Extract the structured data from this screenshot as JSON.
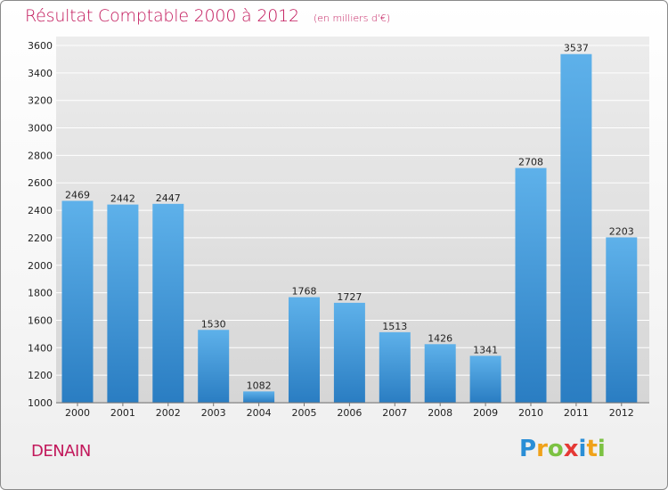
{
  "header": {
    "title": "Résultat Comptable 2000 à 2012",
    "subtitle": "(en milliers d'€)"
  },
  "footer": {
    "city": "DENAIN",
    "logo_text": "Proxiti"
  },
  "colors": {
    "title": "#c2185b",
    "bar_top": "#5aaee8",
    "bar_bottom": "#2a7fc4",
    "plot_bg": "#dcdcdc"
  },
  "chart_data": {
    "type": "bar",
    "title": "Résultat Comptable 2000 à 2012",
    "subtitle": "(en milliers d'€)",
    "xlabel": "",
    "ylabel": "",
    "categories": [
      "2000",
      "2001",
      "2002",
      "2003",
      "2004",
      "2005",
      "2006",
      "2007",
      "2008",
      "2009",
      "2010",
      "2011",
      "2012"
    ],
    "values": [
      2469,
      2442,
      2447,
      1530,
      1082,
      1768,
      1727,
      1513,
      1426,
      1341,
      2708,
      3537,
      2203
    ],
    "ylim": [
      1000,
      3600
    ],
    "yticks": [
      1000,
      1200,
      1400,
      1600,
      1800,
      2000,
      2200,
      2400,
      2600,
      2800,
      3000,
      3200,
      3400,
      3600
    ],
    "grid": true,
    "legend": "none"
  }
}
